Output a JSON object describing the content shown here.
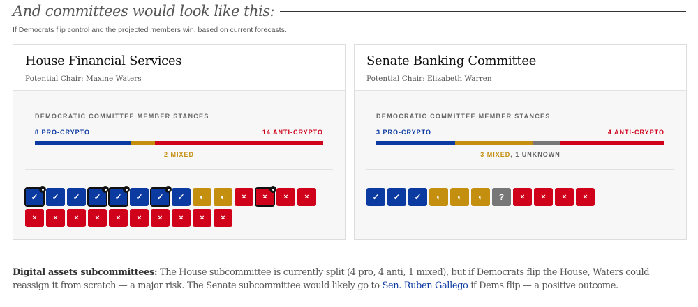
{
  "header": {
    "title": "And committees would look like this:",
    "subtitle": "If Democrats flip control and the projected members win, based on current forecasts."
  },
  "colors": {
    "pro": "#0b3aa0",
    "mixed": "#c48f0e",
    "unknown": "#777777",
    "anti": "#d0021b"
  },
  "icons": {
    "pro": "check-icon",
    "mixed": "half-circle-icon",
    "unknown": "question-icon",
    "anti": "x-icon"
  },
  "committees": [
    {
      "name": "House Financial Services",
      "chair": "Potential Chair: Maxine Waters",
      "stances_label": "DEMOCRATIC COMMITTEE MEMBER STANCES",
      "pro_label": "8 PRO-CRYPTO",
      "anti_label": "14 ANTI-CRYPTO",
      "mixed_label": "2 MIXED",
      "unknown_label": "",
      "counts": {
        "pro": 8,
        "mixed": 2,
        "unknown": 0,
        "anti": 14
      },
      "members": [
        {
          "s": "pro",
          "h": true
        },
        {
          "s": "pro"
        },
        {
          "s": "pro"
        },
        {
          "s": "pro",
          "h": true
        },
        {
          "s": "pro",
          "h": true
        },
        {
          "s": "pro"
        },
        {
          "s": "pro",
          "h": true
        },
        {
          "s": "pro"
        },
        {
          "s": "mixed"
        },
        {
          "s": "mixed"
        },
        {
          "s": "anti"
        },
        {
          "s": "anti",
          "h": true
        },
        {
          "s": "anti"
        },
        {
          "s": "anti"
        },
        {
          "s": "anti"
        },
        {
          "s": "anti"
        },
        {
          "s": "anti"
        },
        {
          "s": "anti"
        },
        {
          "s": "anti"
        },
        {
          "s": "anti"
        },
        {
          "s": "anti"
        },
        {
          "s": "anti"
        },
        {
          "s": "anti"
        },
        {
          "s": "anti"
        }
      ]
    },
    {
      "name": "Senate Banking Committee",
      "chair": "Potential Chair: Elizabeth Warren",
      "stances_label": "DEMOCRATIC COMMITTEE MEMBER STANCES",
      "pro_label": "3 PRO-CRYPTO",
      "anti_label": "4 ANTI-CRYPTO",
      "mixed_label": "3 MIXED",
      "unknown_label": "1 UNKNOWN",
      "counts": {
        "pro": 3,
        "mixed": 3,
        "unknown": 1,
        "anti": 4
      },
      "members": [
        {
          "s": "pro"
        },
        {
          "s": "pro"
        },
        {
          "s": "pro"
        },
        {
          "s": "mixed"
        },
        {
          "s": "mixed"
        },
        {
          "s": "mixed"
        },
        {
          "s": "unknown"
        },
        {
          "s": "anti"
        },
        {
          "s": "anti"
        },
        {
          "s": "anti"
        },
        {
          "s": "anti"
        }
      ]
    }
  ],
  "footer": {
    "bold": "Digital assets subcommittees:",
    "text1": " The House subcommittee is currently split (4 pro, 4 anti, 1 mixed), but if Democrats flip the House, Waters could reassign it from scratch — a major risk. The Senate subcommittee would likely go to ",
    "link": "Sen. Ruben Gallego",
    "text2": " if Dems flip — a positive outcome."
  }
}
